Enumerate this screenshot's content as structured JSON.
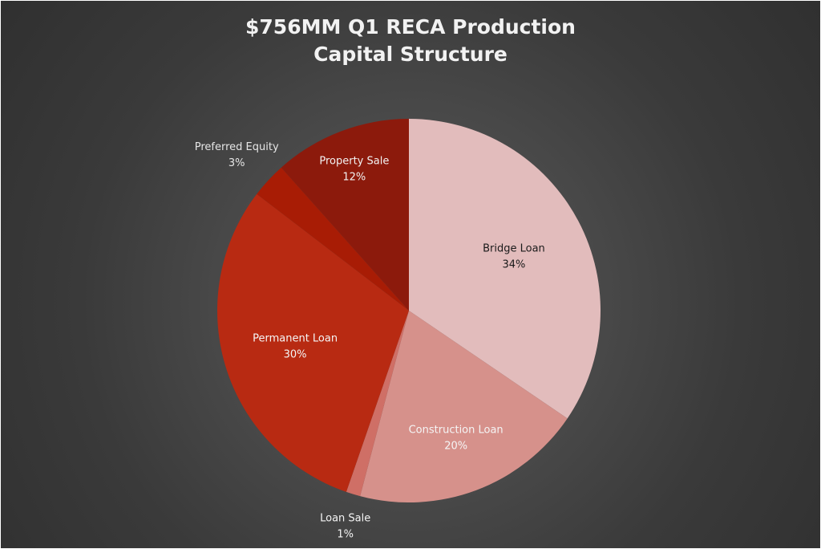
{
  "chart_data": {
    "type": "pie",
    "title_lines": [
      "$756MM Q1 RECA Production",
      "Capital Structure"
    ],
    "slices": [
      {
        "name": "Bridge Loan",
        "value_label": "34%",
        "value": 34.5,
        "color": "#e2bcbc",
        "label_color": "#1a1a1a"
      },
      {
        "name": "Construction Loan",
        "value_label": "20%",
        "value": 19.6,
        "color": "#d6918b",
        "label_color": "#f5f5f5"
      },
      {
        "name": "Loan Sale",
        "value_label": "1%",
        "value": 1.2,
        "color": "#cf6f66",
        "label_color": "#f5f5f5"
      },
      {
        "name": "Permanent Loan",
        "value_label": "30%",
        "value": 30.1,
        "color": "#b82a12",
        "label_color": "#f5f5f5"
      },
      {
        "name": "Preferred Equity",
        "value_label": "3%",
        "value": 3.0,
        "color": "#a81c05",
        "label_color": "#e6e6e6"
      },
      {
        "name": "Property Sale",
        "value_label": "12%",
        "value": 11.6,
        "color": "#8c1a0c",
        "label_color": "#f2f2f2"
      }
    ],
    "legend": "none",
    "data_labels": "category-and-percentage"
  }
}
